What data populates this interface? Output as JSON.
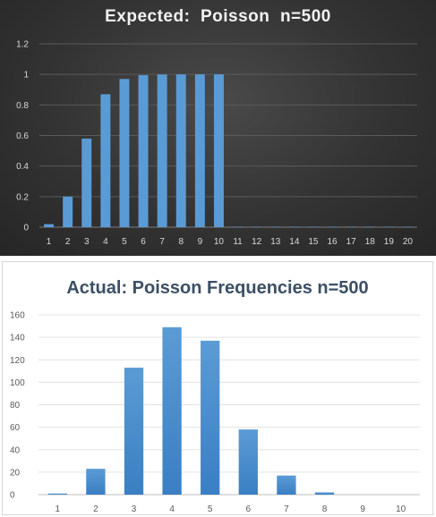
{
  "chart_data": [
    {
      "type": "bar",
      "title": "Expected:  Poisson  n=500",
      "categories": [
        "1",
        "2",
        "3",
        "4",
        "5",
        "6",
        "7",
        "8",
        "9",
        "10",
        "11",
        "12",
        "13",
        "14",
        "15",
        "16",
        "17",
        "18",
        "19",
        "20"
      ],
      "values": [
        0.02,
        0.2,
        0.58,
        0.87,
        0.97,
        0.995,
        0.999,
        1,
        1,
        1,
        0.003,
        0.003,
        0.003,
        0.003,
        0.003,
        0.003,
        0.003,
        0.003,
        0.003,
        0.003
      ],
      "yticks": [
        "0",
        "0.2",
        "0.4",
        "0.6",
        "0.8",
        "1",
        "1.2"
      ],
      "ylim": [
        0,
        1.2
      ],
      "grid": true,
      "background": "#333333",
      "bar_color": "#5b9bd5"
    },
    {
      "type": "bar",
      "title": "Actual: Poisson Frequencies n=500",
      "categories": [
        "1",
        "2",
        "3",
        "4",
        "5",
        "6",
        "7",
        "8",
        "9",
        "10"
      ],
      "values": [
        1,
        23,
        113,
        149,
        137,
        58,
        17,
        2,
        0,
        0
      ],
      "yticks": [
        "0",
        "20",
        "40",
        "60",
        "80",
        "100",
        "120",
        "140",
        "160"
      ],
      "ylim": [
        0,
        160
      ],
      "grid": true,
      "background": "#ffffff",
      "bar_color": "#5b9bd5"
    }
  ]
}
